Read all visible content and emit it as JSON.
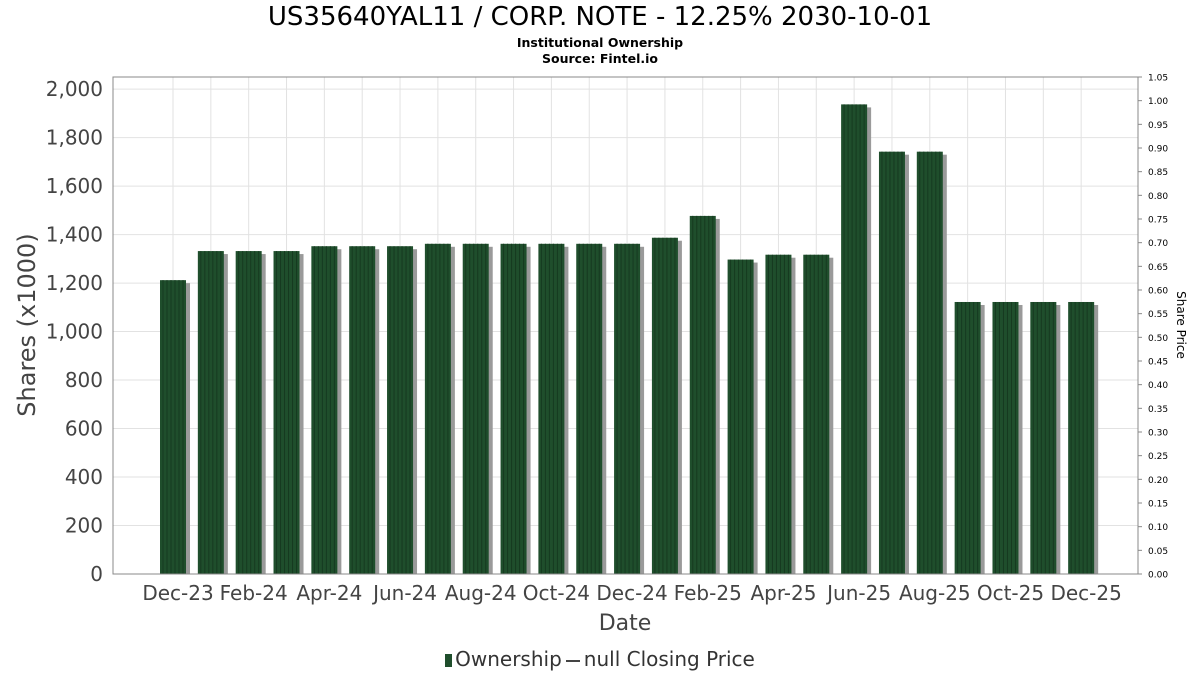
{
  "chart_data": {
    "type": "bar",
    "title": "US35640YAL11 / CORP. NOTE - 12.25% 2030-10-01",
    "subtitle_lines": [
      "Institutional Ownership",
      "Source: Fintel.io"
    ],
    "xlabel": "Date",
    "ylabel": "Shares (x1000)",
    "y2label": "Share Price",
    "ylim": [
      0,
      2050
    ],
    "y2lim": [
      0,
      1.05
    ],
    "yticks": [
      "0",
      "200",
      "400",
      "600",
      "800",
      "1,000",
      "1,200",
      "1,400",
      "1,600",
      "1,800",
      "2,000"
    ],
    "y2ticks": [
      "0.00",
      "0.05",
      "0.10",
      "0.15",
      "0.20",
      "0.25",
      "0.30",
      "0.35",
      "0.40",
      "0.45",
      "0.50",
      "0.55",
      "0.60",
      "0.65",
      "0.70",
      "0.75",
      "0.80",
      "0.85",
      "0.90",
      "0.95",
      "1.00",
      "1.05"
    ],
    "xtick_labels": [
      "Dec-23",
      "Feb-24",
      "Apr-24",
      "Jun-24",
      "Aug-24",
      "Oct-24",
      "Dec-24",
      "Feb-25",
      "Apr-25",
      "Jun-25",
      "Aug-25",
      "Oct-25",
      "Dec-25"
    ],
    "grid": true,
    "legend_position": "bottom",
    "series": [
      {
        "name": "Ownership",
        "color": "#1f4e2c",
        "values": [
          1212,
          1332,
          1332,
          1332,
          1352,
          1352,
          1352,
          1362,
          1362,
          1362,
          1362,
          1362,
          1362,
          1387,
          1477,
          1297,
          1317,
          1317,
          1937,
          1742,
          1742,
          1122,
          1122,
          1122,
          1122
        ]
      }
    ]
  },
  "legend": {
    "ownership_label": "Ownership",
    "price_label": "null Closing Price"
  }
}
